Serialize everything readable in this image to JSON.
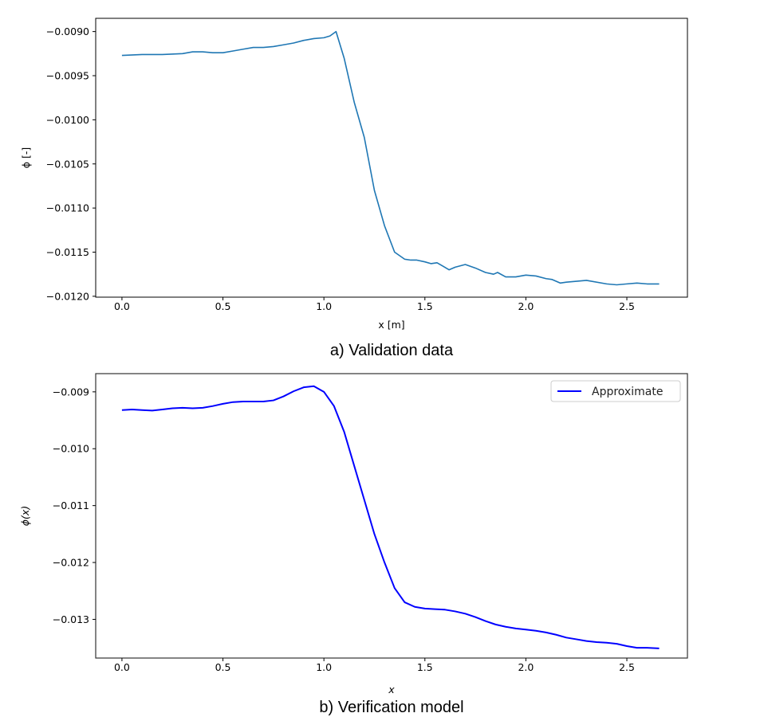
{
  "chart_data": [
    {
      "type": "line",
      "caption": "a) Validation data",
      "xlabel": "x [m]",
      "ylabel": "ϕ [-]",
      "xlim": [
        -0.13,
        2.8
      ],
      "ylim": [
        -0.01201,
        -0.00885
      ],
      "xticks": [
        0.0,
        0.5,
        1.0,
        1.5,
        2.0,
        2.5
      ],
      "xtick_labels": [
        "0.0",
        "0.5",
        "1.0",
        "1.5",
        "2.0",
        "2.5"
      ],
      "yticks": [
        -0.009,
        -0.0095,
        -0.01,
        -0.0105,
        -0.011,
        -0.0115,
        -0.012
      ],
      "ytick_labels": [
        "−0.0090",
        "−0.0095",
        "−0.0100",
        "−0.0105",
        "−0.0110",
        "−0.0115",
        "−0.0120"
      ],
      "grid": false,
      "series": [
        {
          "color": "#1f77b4",
          "x": [
            0.0,
            0.1,
            0.2,
            0.3,
            0.35,
            0.4,
            0.45,
            0.5,
            0.55,
            0.6,
            0.65,
            0.7,
            0.75,
            0.8,
            0.85,
            0.9,
            0.95,
            1.0,
            1.03,
            1.06,
            1.1,
            1.15,
            1.2,
            1.25,
            1.3,
            1.35,
            1.4,
            1.43,
            1.46,
            1.5,
            1.53,
            1.56,
            1.59,
            1.62,
            1.65,
            1.7,
            1.75,
            1.8,
            1.84,
            1.86,
            1.9,
            1.95,
            2.0,
            2.05,
            2.1,
            2.13,
            2.17,
            2.2,
            2.3,
            2.4,
            2.45,
            2.5,
            2.55,
            2.6,
            2.66
          ],
          "values": [
            -0.00927,
            -0.00926,
            -0.00926,
            -0.00925,
            -0.00923,
            -0.00923,
            -0.00924,
            -0.00924,
            -0.00922,
            -0.0092,
            -0.00918,
            -0.00918,
            -0.00917,
            -0.00915,
            -0.00913,
            -0.0091,
            -0.00908,
            -0.00907,
            -0.00905,
            -0.009,
            -0.0093,
            -0.0098,
            -0.0102,
            -0.0108,
            -0.0112,
            -0.0115,
            -0.01158,
            -0.01159,
            -0.01159,
            -0.01161,
            -0.01163,
            -0.01162,
            -0.01166,
            -0.0117,
            -0.01167,
            -0.01164,
            -0.01168,
            -0.01173,
            -0.01175,
            -0.01173,
            -0.01178,
            -0.01178,
            -0.01176,
            -0.01177,
            -0.0118,
            -0.01181,
            -0.01185,
            -0.01184,
            -0.01182,
            -0.01186,
            -0.01187,
            -0.01186,
            -0.01185,
            -0.01186,
            -0.01186
          ]
        }
      ]
    },
    {
      "type": "line",
      "caption": "b) Verification model",
      "xlabel": "x",
      "ylabel": "ϕ(x)",
      "xlim": [
        -0.13,
        2.8
      ],
      "ylim": [
        -0.01368,
        -0.00868
      ],
      "xticks": [
        0.0,
        0.5,
        1.0,
        1.5,
        2.0,
        2.5
      ],
      "xtick_labels": [
        "0.0",
        "0.5",
        "1.0",
        "1.5",
        "2.0",
        "2.5"
      ],
      "yticks": [
        -0.009,
        -0.01,
        -0.011,
        -0.012,
        -0.013
      ],
      "ytick_labels": [
        "−0.009",
        "−0.010",
        "−0.011",
        "−0.012",
        "−0.013"
      ],
      "grid": false,
      "legend_position": "top-right",
      "series": [
        {
          "name": "Approximate",
          "color": "#0000ff",
          "x": [
            0.0,
            0.05,
            0.1,
            0.15,
            0.2,
            0.25,
            0.3,
            0.35,
            0.4,
            0.45,
            0.5,
            0.55,
            0.6,
            0.65,
            0.7,
            0.75,
            0.8,
            0.85,
            0.9,
            0.95,
            1.0,
            1.05,
            1.1,
            1.15,
            1.2,
            1.25,
            1.3,
            1.35,
            1.4,
            1.45,
            1.5,
            1.55,
            1.6,
            1.65,
            1.7,
            1.75,
            1.8,
            1.85,
            1.9,
            1.95,
            2.0,
            2.05,
            2.1,
            2.15,
            2.2,
            2.25,
            2.3,
            2.35,
            2.4,
            2.45,
            2.5,
            2.55,
            2.6,
            2.66
          ],
          "values": [
            -0.00932,
            -0.00931,
            -0.00932,
            -0.00933,
            -0.00931,
            -0.00929,
            -0.00928,
            -0.00929,
            -0.00928,
            -0.00925,
            -0.00921,
            -0.00918,
            -0.00917,
            -0.00917,
            -0.00917,
            -0.00915,
            -0.00908,
            -0.00899,
            -0.00892,
            -0.0089,
            -0.009,
            -0.00925,
            -0.0097,
            -0.0103,
            -0.0109,
            -0.0115,
            -0.012,
            -0.01245,
            -0.0127,
            -0.01278,
            -0.01281,
            -0.01282,
            -0.01283,
            -0.01286,
            -0.0129,
            -0.01296,
            -0.01303,
            -0.01309,
            -0.01313,
            -0.01316,
            -0.01318,
            -0.0132,
            -0.01323,
            -0.01327,
            -0.01332,
            -0.01335,
            -0.01338,
            -0.0134,
            -0.01341,
            -0.01343,
            -0.01347,
            -0.0135,
            -0.0135,
            -0.01351
          ]
        }
      ]
    }
  ]
}
